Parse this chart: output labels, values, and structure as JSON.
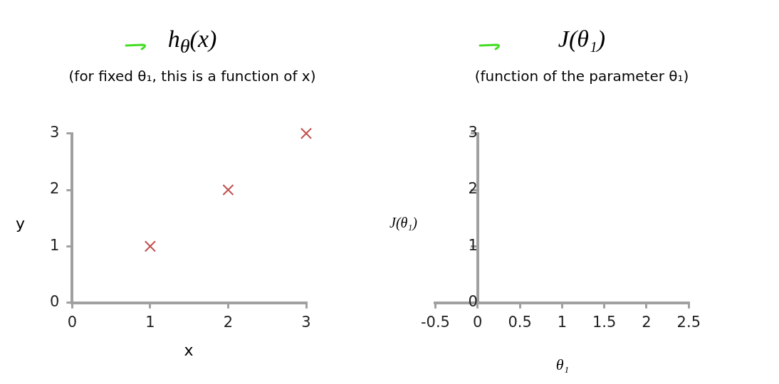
{
  "chart_data": [
    {
      "type": "scatter",
      "title": "h$_{θ}$(x)",
      "subtitle": "(for fixed θ₁, this is a function of x)",
      "xlabel": "x",
      "ylabel": "y",
      "x": [
        1,
        2,
        3
      ],
      "values": [
        1,
        2,
        3
      ],
      "color": "#c0504d",
      "marker": "cross",
      "xlim": [
        0,
        3
      ],
      "ylim": [
        0,
        3
      ],
      "xticks": [
        0,
        1,
        2,
        3
      ],
      "yticks": [
        0,
        1,
        2,
        3
      ],
      "grid": false
    },
    {
      "type": "scatter",
      "title": "J(θ₁)",
      "subtitle": "(function of the parameter θ₁)",
      "xlabel": "θ₁",
      "ylabel": "J(θ₁)",
      "xlim": [
        -0.5,
        2.5
      ],
      "ylim": [
        0,
        3
      ],
      "xticks": [
        -0.5,
        0,
        0.5,
        1,
        1.5,
        2,
        2.5
      ],
      "yticks": [
        0,
        1,
        2,
        3
      ],
      "grid": false
    }
  ]
}
